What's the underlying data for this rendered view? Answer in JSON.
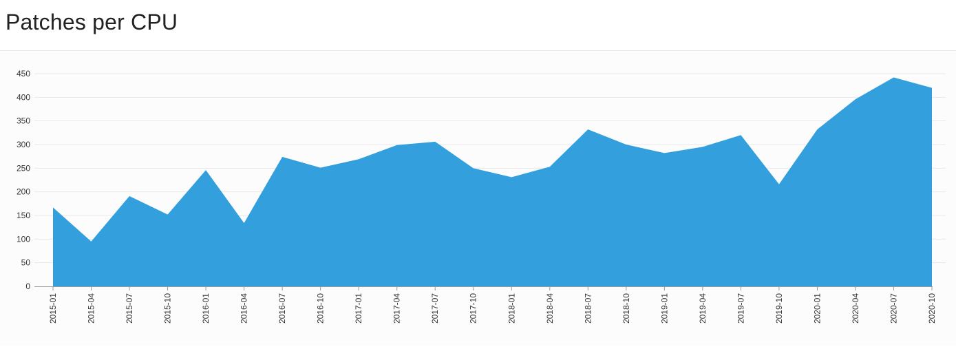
{
  "page": {
    "title": "Patches per CPU"
  },
  "colors": {
    "area_fill": "#339fdc",
    "grid": "#e8e8e8",
    "axis": "#9a9a9a",
    "tick_text": "#333333"
  },
  "chart_data": {
    "type": "area",
    "title": "Patches per CPU",
    "xlabel": "",
    "ylabel": "",
    "ylim": [
      0,
      450
    ],
    "yticks": [
      0,
      50,
      100,
      150,
      200,
      250,
      300,
      350,
      400,
      450
    ],
    "grid": true,
    "categories": [
      "2015-01",
      "2015-04",
      "2015-07",
      "2015-10",
      "2016-01",
      "2016-04",
      "2016-07",
      "2016-10",
      "2017-01",
      "2017-04",
      "2017-07",
      "2017-10",
      "2018-01",
      "2018-04",
      "2018-07",
      "2018-10",
      "2019-01",
      "2019-04",
      "2019-07",
      "2019-10",
      "2020-01",
      "2020-04",
      "2020-07",
      "2020-10"
    ],
    "values": [
      167,
      95,
      191,
      152,
      246,
      134,
      274,
      251,
      269,
      299,
      306,
      250,
      231,
      253,
      332,
      300,
      282,
      295,
      320,
      216,
      332,
      396,
      442,
      420
    ]
  }
}
